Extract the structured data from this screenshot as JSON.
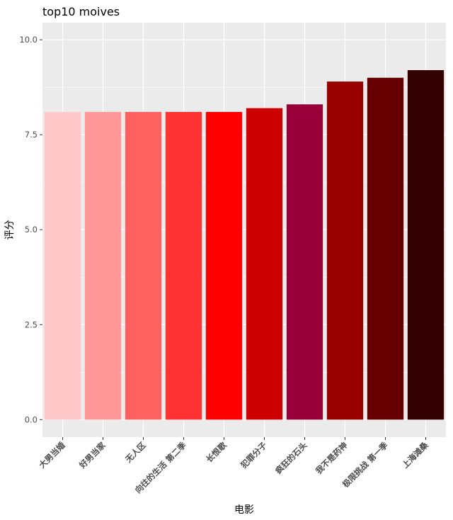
{
  "chart_data": {
    "type": "bar",
    "title": "top10 moives",
    "xlabel": "电影",
    "ylabel": "评分",
    "categories": [
      "大男当婚",
      "好男当家",
      "无人区",
      "向往的生活 第二季",
      "长恨歌",
      "犯罪分子",
      "疯狂的石头",
      "我不是药神",
      "极限挑战 第一季",
      "上海滩桑"
    ],
    "values": [
      8.1,
      8.1,
      8.1,
      8.1,
      8.1,
      8.2,
      8.3,
      8.9,
      9.0,
      9.2
    ],
    "colors": [
      "#ffc8c8",
      "#ff9999",
      "#ff6161",
      "#ff3333",
      "#ff0000",
      "#cc0000",
      "#99003a",
      "#990000",
      "#660000",
      "#330000"
    ],
    "ylim": [
      -0.46,
      10.45
    ],
    "yticks": [
      0.0,
      2.5,
      5.0,
      7.5,
      10.0
    ],
    "ytick_labels": [
      "0.0",
      "2.5",
      "5.0",
      "7.5",
      "10.0"
    ],
    "panel_background": "#ebebeb",
    "grid_color": "#ffffff",
    "grid": true,
    "legend": "none"
  }
}
